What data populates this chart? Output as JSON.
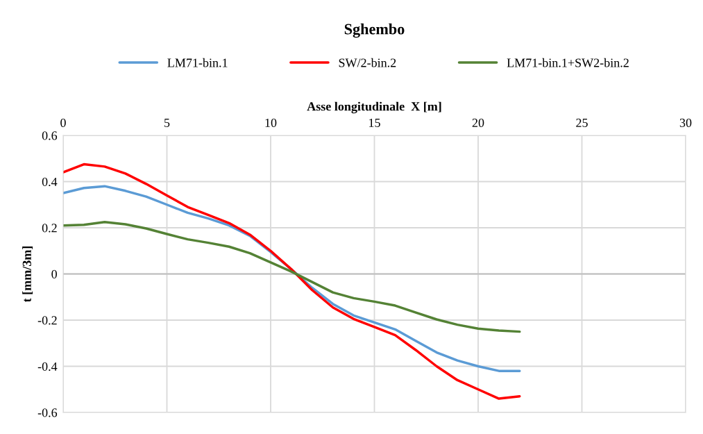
{
  "chart_data": {
    "type": "line",
    "title": "Sghembo",
    "xlabel": "Asse longitudinale  X [m]",
    "ylabel": "t [mm/3m]",
    "x": [
      0,
      1,
      2,
      3,
      4,
      5,
      6,
      7,
      8,
      9,
      10,
      11,
      12,
      13,
      14,
      15,
      16,
      17,
      18,
      19,
      20,
      21,
      22
    ],
    "series": [
      {
        "name": "LM71-bin.1",
        "color": "#5b9bd5",
        "values": [
          0.35,
          0.372,
          0.38,
          0.36,
          0.335,
          0.3,
          0.265,
          0.24,
          0.21,
          0.165,
          0.095,
          0.02,
          -0.06,
          -0.13,
          -0.18,
          -0.21,
          -0.24,
          -0.29,
          -0.34,
          -0.375,
          -0.4,
          -0.42,
          -0.42
        ]
      },
      {
        "name": "SW/2-bin.2",
        "color": "#ff0000",
        "values": [
          0.44,
          0.475,
          0.465,
          0.435,
          0.39,
          0.34,
          0.29,
          0.255,
          0.22,
          0.17,
          0.1,
          0.02,
          -0.07,
          -0.145,
          -0.195,
          -0.23,
          -0.265,
          -0.33,
          -0.4,
          -0.46,
          -0.5,
          -0.54,
          -0.53
        ]
      },
      {
        "name": "LM71-bin.1+SW2-bin.2",
        "color": "#548235",
        "values": [
          0.21,
          0.213,
          0.225,
          0.215,
          0.197,
          0.173,
          0.15,
          0.135,
          0.118,
          0.09,
          0.05,
          0.01,
          -0.035,
          -0.08,
          -0.105,
          -0.12,
          -0.137,
          -0.167,
          -0.197,
          -0.22,
          -0.237,
          -0.245,
          -0.25
        ]
      }
    ],
    "xlim": [
      0,
      30
    ],
    "xticks": [
      0,
      5,
      10,
      15,
      20,
      25,
      30
    ],
    "ylim": [
      -0.6,
      0.6
    ],
    "yticks": [
      {
        "value": -0.6,
        "label": "-0.6"
      },
      {
        "value": -0.4,
        "label": "-0.4"
      },
      {
        "value": -0.2,
        "label": "-0.2"
      },
      0,
      0.2,
      0.4,
      0.6
    ],
    "grid": true,
    "legend": "top",
    "marker": "none",
    "line_style": "solid"
  }
}
